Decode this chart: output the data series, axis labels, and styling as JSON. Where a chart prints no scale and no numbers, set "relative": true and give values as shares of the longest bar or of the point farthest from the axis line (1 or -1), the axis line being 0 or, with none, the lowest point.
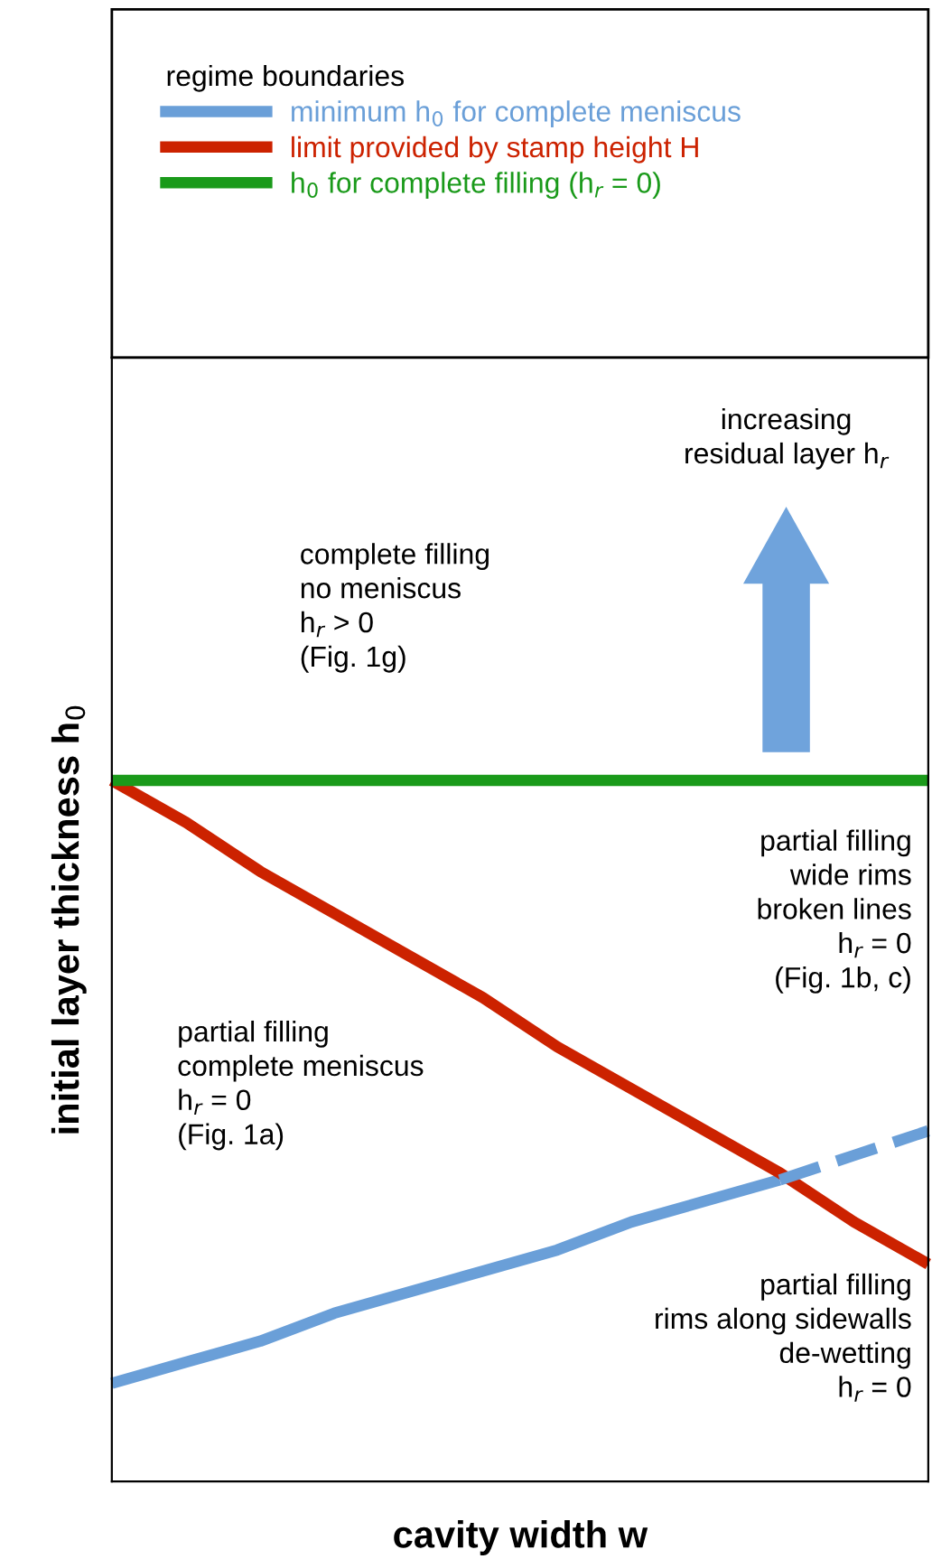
{
  "chart_data": {
    "type": "line",
    "relative": true,
    "xlabel": "cavity width w",
    "ylabel": "initial layer thickness h$_{0}$",
    "legend_title": "regime boundaries",
    "legend": "top",
    "marker": "none",
    "categories": [
      null,
      null,
      null,
      null,
      null,
      null,
      null,
      null,
      null,
      null,
      null,
      null
    ],
    "series": [
      {
        "name": "minimum h$_{0}$ for complete meniscus",
        "color": "#6a9fd8",
        "values": [
          0.14,
          0.17,
          0.2,
          0.24,
          0.27,
          0.3,
          0.33,
          0.37,
          0.4,
          0.43,
          null,
          null
        ],
        "line_style": "solid"
      },
      {
        "name": "limit provided by stamp height H",
        "color": "#cc2200",
        "values": [
          1,
          0.94,
          0.87,
          0.81,
          0.75,
          0.69,
          0.62,
          0.56,
          0.5,
          0.44,
          0.37,
          0.31
        ],
        "line_style": "solid"
      },
      {
        "name": "h$_{0}$ for complete filling (h$_{r}$ = 0)",
        "color": "#1a9a1a",
        "values": [
          1,
          1,
          1,
          1,
          1,
          1,
          1,
          1,
          1,
          1,
          1,
          1
        ],
        "line_style": "solid"
      },
      {
        "color": "#6a9fd8",
        "values": [
          null,
          null,
          null,
          null,
          null,
          null,
          null,
          null,
          null,
          0.43,
          0.465,
          0.5
        ],
        "line_style": "dashed"
      }
    ],
    "annotations": [
      "complete filling\nno meniscus\nh$_{r}$ > 0\n(Fig. 1g)",
      "increasing\nresidual layer h$_{r}$",
      "partial filling\nwide rims\nbroken lines\nh$_{r}$ = 0\n(Fig. 1b, c)",
      "partial filling\ncomplete meniscus\nh$_{r}$ = 0\n(Fig. 1a)",
      "partial filling\nrims along sidewalls\nde-wetting\nh$_{r}$ = 0"
    ]
  }
}
